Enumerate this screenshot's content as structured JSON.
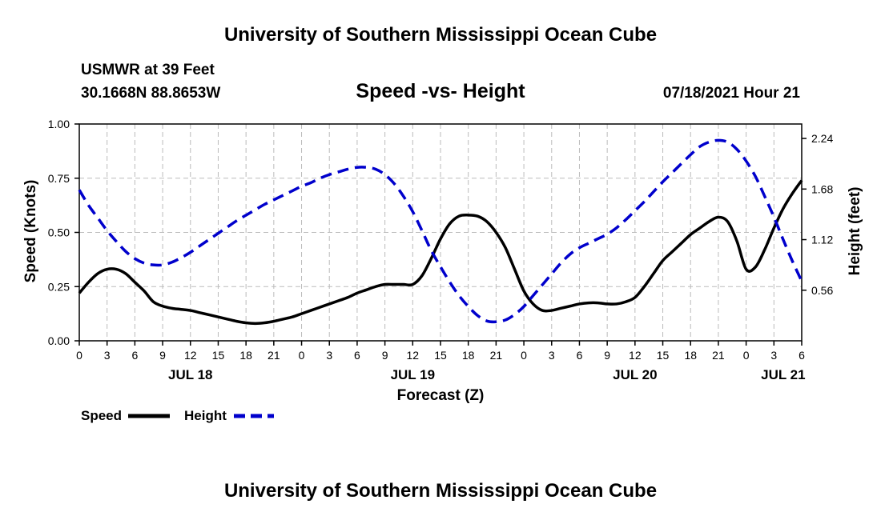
{
  "page": {
    "top_title": "University of Southern Mississippi Ocean Cube",
    "bottom_title": "University of Southern Mississippi Ocean Cube",
    "station": "USMWR at 39 Feet",
    "location": "30.1668N  88.8653W",
    "plot_title": "Speed -vs- Height",
    "datetime": "07/18/2021 Hour 21"
  },
  "chart_data": {
    "type": "line",
    "title": "Speed -vs- Height",
    "xlabel": "Forecast (Z)",
    "ylabel": "Speed (Knots)",
    "y2label": "Height (feet)",
    "x_range_hours": [
      0,
      78
    ],
    "ylim": [
      0,
      1.0
    ],
    "y2lim": [
      0,
      2.4
    ],
    "y_ticks": [
      "0.00",
      "0.25",
      "0.50",
      "0.75",
      "1.00"
    ],
    "y2_ticks": [
      "0.56",
      "1.12",
      "1.68",
      "2.24"
    ],
    "x_tick_labels": [
      "0",
      "3",
      "6",
      "9",
      "12",
      "15",
      "18",
      "21",
      "0",
      "3",
      "6",
      "9",
      "12",
      "15",
      "18",
      "21",
      "0",
      "3",
      "6",
      "9",
      "12",
      "15",
      "18",
      "21",
      "0",
      "3",
      "6"
    ],
    "date_labels": [
      {
        "label": "JUL 18",
        "hour": 12
      },
      {
        "label": "JUL 19",
        "hour": 36
      },
      {
        "label": "JUL 20",
        "hour": 60
      },
      {
        "label": "JUL 21",
        "hour": 76
      }
    ],
    "grid": true,
    "legend_position": "bottom-left",
    "series": [
      {
        "name": "Speed",
        "axis": "left",
        "color": "#000000",
        "style": "solid",
        "x": [
          0,
          1,
          2,
          3,
          4,
          5,
          6,
          7,
          8,
          9,
          10,
          11,
          12,
          13,
          14,
          15,
          16,
          17,
          18,
          19,
          20,
          21,
          22,
          23,
          24,
          25,
          26,
          27,
          28,
          29,
          30,
          31,
          32,
          33,
          34,
          35,
          36,
          37,
          38,
          39,
          40,
          41,
          42,
          43,
          44,
          45,
          46,
          47,
          48,
          49,
          50,
          51,
          52,
          53,
          54,
          55,
          56,
          57,
          58,
          59,
          60,
          61,
          62,
          63,
          64,
          65,
          66,
          67,
          68,
          69,
          70,
          71,
          72,
          73,
          74,
          75,
          76,
          77,
          78
        ],
        "values": [
          0.22,
          0.27,
          0.31,
          0.33,
          0.33,
          0.31,
          0.27,
          0.23,
          0.18,
          0.16,
          0.15,
          0.145,
          0.14,
          0.13,
          0.12,
          0.11,
          0.1,
          0.09,
          0.083,
          0.08,
          0.083,
          0.09,
          0.1,
          0.11,
          0.125,
          0.14,
          0.155,
          0.17,
          0.185,
          0.2,
          0.22,
          0.235,
          0.25,
          0.26,
          0.26,
          0.26,
          0.26,
          0.3,
          0.38,
          0.47,
          0.54,
          0.575,
          0.58,
          0.575,
          0.55,
          0.5,
          0.43,
          0.33,
          0.23,
          0.17,
          0.14,
          0.14,
          0.15,
          0.16,
          0.17,
          0.175,
          0.175,
          0.17,
          0.17,
          0.18,
          0.2,
          0.25,
          0.31,
          0.37,
          0.41,
          0.45,
          0.49,
          0.52,
          0.55,
          0.57,
          0.55,
          0.46,
          0.33,
          0.34,
          0.42,
          0.52,
          0.61,
          0.68,
          0.74
        ]
      },
      {
        "name": "Height",
        "axis": "right",
        "color": "#0000cc",
        "style": "dashed",
        "x": [
          0,
          1,
          2,
          3,
          4,
          5,
          6,
          7,
          8,
          9,
          10,
          11,
          12,
          13,
          14,
          15,
          16,
          17,
          18,
          19,
          20,
          21,
          22,
          23,
          24,
          25,
          26,
          27,
          28,
          29,
          30,
          31,
          32,
          33,
          34,
          35,
          36,
          37,
          38,
          39,
          40,
          41,
          42,
          43,
          44,
          45,
          46,
          47,
          48,
          49,
          50,
          51,
          52,
          53,
          54,
          55,
          56,
          57,
          58,
          59,
          60,
          61,
          62,
          63,
          64,
          65,
          66,
          67,
          68,
          69,
          70,
          71,
          72,
          73,
          74,
          75,
          76,
          77,
          78
        ],
        "values": [
          1.67,
          1.5,
          1.36,
          1.22,
          1.1,
          0.99,
          0.91,
          0.86,
          0.84,
          0.84,
          0.87,
          0.92,
          0.98,
          1.05,
          1.12,
          1.19,
          1.26,
          1.33,
          1.39,
          1.45,
          1.51,
          1.56,
          1.61,
          1.66,
          1.71,
          1.75,
          1.8,
          1.84,
          1.87,
          1.9,
          1.92,
          1.92,
          1.9,
          1.84,
          1.74,
          1.6,
          1.43,
          1.22,
          1.0,
          0.82,
          0.65,
          0.5,
          0.38,
          0.28,
          0.22,
          0.21,
          0.23,
          0.29,
          0.38,
          0.5,
          0.62,
          0.74,
          0.86,
          0.96,
          1.03,
          1.08,
          1.13,
          1.18,
          1.25,
          1.34,
          1.44,
          1.54,
          1.65,
          1.76,
          1.86,
          1.96,
          2.06,
          2.15,
          2.2,
          2.22,
          2.2,
          2.12,
          1.99,
          1.82,
          1.6,
          1.37,
          1.12,
          0.88,
          0.66
        ]
      }
    ]
  }
}
